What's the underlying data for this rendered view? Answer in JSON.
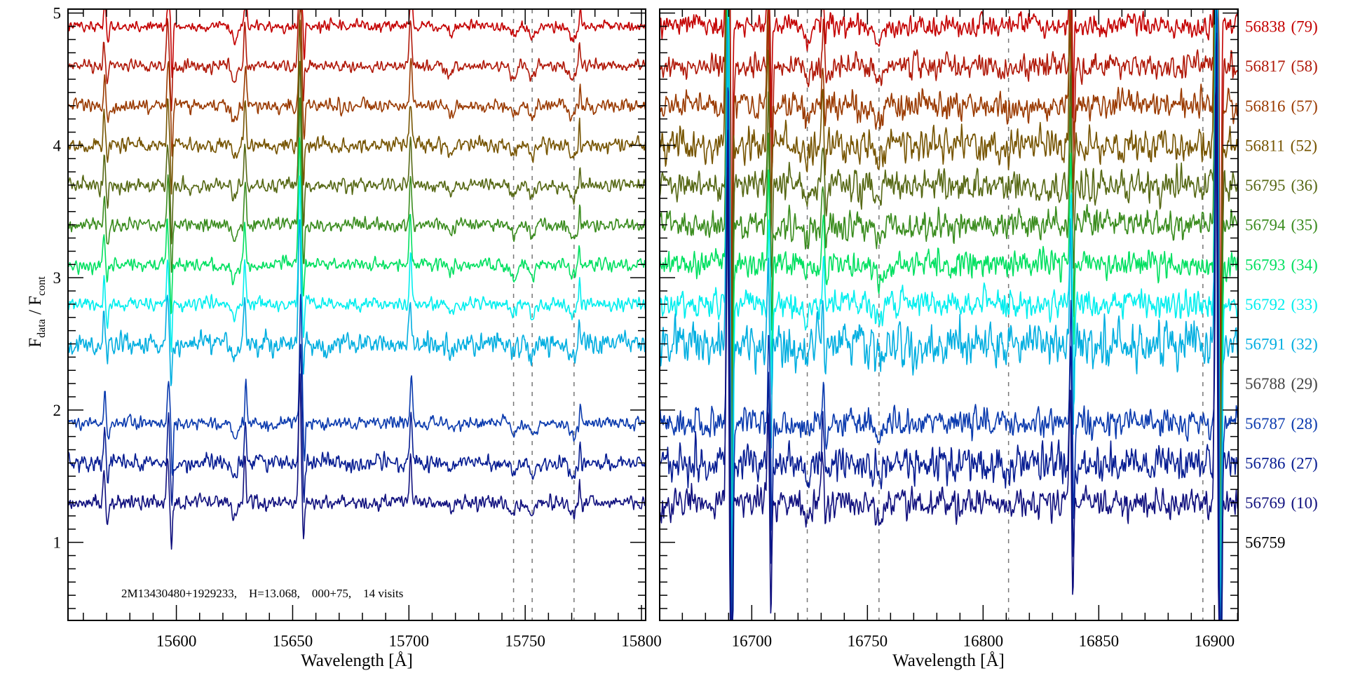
{
  "chart_data": {
    "type": "line",
    "title": "",
    "annotation": "2M13430480+1929233,    H=13.068,    000+75,    14 visits",
    "ylabel_main": "F",
    "ylabel_sub1": "data",
    "ylabel_sep": " / F",
    "ylabel_sub2": "cont",
    "ylim": [
      0.41,
      5.03
    ],
    "yticks": [
      1,
      2,
      3,
      4,
      5
    ],
    "ytick_labels": [
      "1",
      "2",
      "3",
      "4",
      "5"
    ],
    "yminor_step": 0.1,
    "grid": false,
    "panels": [
      {
        "xlabel": "Wavelength [Å]",
        "xlim": [
          15553.4,
          15801.8
        ],
        "xticks": [
          15600,
          15650,
          15700,
          15750,
          15800
        ],
        "xtick_labels": [
          "15600",
          "15650",
          "15700",
          "15750",
          "15800"
        ],
        "xminor_step": 10,
        "show_ylabels": true,
        "dashed_lines": [
          15745,
          15753,
          15771
        ],
        "features": [
          {
            "wl": 15569.0,
            "amp": 0.22,
            "sigma": 0.4
          },
          {
            "wl": 15570.5,
            "amp": -0.14,
            "sigma": 0.4
          },
          {
            "wl": 15596.4,
            "amp": 0.34,
            "sigma": 0.45
          },
          {
            "wl": 15598.0,
            "amp": -0.38,
            "sigma": 0.35
          },
          {
            "wl": 15625.0,
            "amp": -0.12,
            "sigma": 1.0
          },
          {
            "wl": 15629.6,
            "amp": 0.32,
            "sigma": 0.45
          },
          {
            "wl": 15653.2,
            "amp": 0.95,
            "sigma": 0.5
          },
          {
            "wl": 15654.8,
            "amp": -0.28,
            "sigma": 0.35
          },
          {
            "wl": 15700.8,
            "amp": 0.36,
            "sigma": 0.5
          },
          {
            "wl": 15718.0,
            "amp": -0.07,
            "sigma": 1.0
          },
          {
            "wl": 15745.0,
            "amp": -0.08,
            "sigma": 1.2
          },
          {
            "wl": 15753.0,
            "amp": -0.1,
            "sigma": 1.0
          },
          {
            "wl": 15770.5,
            "amp": -0.1,
            "sigma": 1.3
          },
          {
            "wl": 15773.5,
            "amp": 0.18,
            "sigma": 0.3
          }
        ],
        "noise": 0.035
      },
      {
        "xlabel": "Wavelength [Å]",
        "xlim": [
          16660.2,
          16910.2
        ],
        "xticks": [
          16700,
          16750,
          16800,
          16850,
          16900
        ],
        "xtick_labels": [
          "16700",
          "16750",
          "16800",
          "16850",
          "16900"
        ],
        "xminor_step": 10,
        "show_ylabels": false,
        "dashed_lines": [
          16724,
          16755,
          16811,
          16895
        ],
        "features": [
          {
            "wl": 16689.6,
            "amp": 2.6,
            "sigma": 0.5
          },
          {
            "wl": 16691.3,
            "amp": -2.6,
            "sigma": 0.4
          },
          {
            "wl": 16707.2,
            "amp": 0.7,
            "sigma": 0.4
          },
          {
            "wl": 16708.5,
            "amp": -0.75,
            "sigma": 0.35
          },
          {
            "wl": 16724.0,
            "amp": -0.1,
            "sigma": 1.2
          },
          {
            "wl": 16730.8,
            "amp": 0.35,
            "sigma": 0.45
          },
          {
            "wl": 16732.0,
            "amp": -0.15,
            "sigma": 0.4
          },
          {
            "wl": 16755.0,
            "amp": -0.13,
            "sigma": 1.6
          },
          {
            "wl": 16837.8,
            "amp": 0.9,
            "sigma": 0.4
          },
          {
            "wl": 16839.0,
            "amp": -0.7,
            "sigma": 0.35
          },
          {
            "wl": 16900.8,
            "amp": 3.2,
            "sigma": 0.5
          },
          {
            "wl": 16902.6,
            "amp": -3.2,
            "sigma": 0.45
          }
        ],
        "noise": 0.075
      }
    ],
    "series": [
      {
        "mjd": "56838",
        "visits": "(79)",
        "offset": 4.9,
        "color": "#c40000",
        "has_data": true,
        "noise_scale": 0.8
      },
      {
        "mjd": "56817",
        "visits": "(58)",
        "offset": 4.6,
        "color": "#b01808",
        "has_data": true,
        "noise_scale": 0.9
      },
      {
        "mjd": "56816",
        "visits": "(57)",
        "offset": 4.3,
        "color": "#9a3a00",
        "has_data": true,
        "noise_scale": 1.0
      },
      {
        "mjd": "56811",
        "visits": "(52)",
        "offset": 4.0,
        "color": "#765400",
        "has_data": true,
        "noise_scale": 1.2
      },
      {
        "mjd": "56795",
        "visits": "(36)",
        "offset": 3.7,
        "color": "#566814",
        "has_data": true,
        "noise_scale": 1.1
      },
      {
        "mjd": "56794",
        "visits": "(35)",
        "offset": 3.4,
        "color": "#3a8c1e",
        "has_data": true,
        "noise_scale": 1.0
      },
      {
        "mjd": "56793",
        "visits": "(34)",
        "offset": 3.1,
        "color": "#00e060",
        "has_data": true,
        "noise_scale": 1.0
      },
      {
        "mjd": "56792",
        "visits": "(33)",
        "offset": 2.8,
        "color": "#00eeee",
        "has_data": true,
        "noise_scale": 1.0
      },
      {
        "mjd": "56791",
        "visits": "(32)",
        "offset": 2.5,
        "color": "#00aee0",
        "has_data": true,
        "noise_scale": 1.6
      },
      {
        "mjd": "56788",
        "visits": "(29)",
        "offset": 2.2,
        "color": "#444444",
        "has_data": false,
        "noise_scale": 1.0
      },
      {
        "mjd": "56787",
        "visits": "(28)",
        "offset": 1.9,
        "color": "#0a3aae",
        "has_data": true,
        "noise_scale": 1.0
      },
      {
        "mjd": "56786",
        "visits": "(27)",
        "offset": 1.6,
        "color": "#061c92",
        "has_data": true,
        "noise_scale": 1.3
      },
      {
        "mjd": "56769",
        "visits": "(10)",
        "offset": 1.3,
        "color": "#10107e",
        "has_data": true,
        "noise_scale": 1.1
      },
      {
        "mjd": "56759",
        "visits": "",
        "offset": 1.0,
        "color": "#000000",
        "has_data": false,
        "noise_scale": 1.0
      }
    ]
  }
}
